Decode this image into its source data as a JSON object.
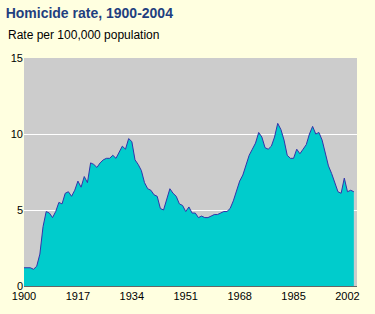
{
  "chart_data": {
    "type": "area",
    "title": "Homicide rate, 1900-2004",
    "subtitle": "Rate per 100,000 population",
    "color": "#00cccc",
    "x": [
      1900,
      1901,
      1902,
      1903,
      1904,
      1905,
      1906,
      1907,
      1908,
      1909,
      1910,
      1911,
      1912,
      1913,
      1914,
      1915,
      1916,
      1917,
      1918,
      1919,
      1920,
      1921,
      1922,
      1923,
      1924,
      1925,
      1926,
      1927,
      1928,
      1929,
      1930,
      1931,
      1932,
      1933,
      1934,
      1935,
      1936,
      1937,
      1938,
      1939,
      1940,
      1941,
      1942,
      1943,
      1944,
      1945,
      1946,
      1947,
      1948,
      1949,
      1950,
      1951,
      1952,
      1953,
      1954,
      1955,
      1956,
      1957,
      1958,
      1959,
      1960,
      1961,
      1962,
      1963,
      1964,
      1965,
      1966,
      1967,
      1968,
      1969,
      1970,
      1971,
      1972,
      1973,
      1974,
      1975,
      1976,
      1977,
      1978,
      1979,
      1980,
      1981,
      1982,
      1983,
      1984,
      1985,
      1986,
      1987,
      1988,
      1989,
      1990,
      1991,
      1992,
      1993,
      1994,
      1995,
      1996,
      1997,
      1998,
      1999,
      2000,
      2001,
      2002,
      2003,
      2004
    ],
    "values": [
      1.2,
      1.2,
      1.2,
      1.1,
      1.3,
      2.1,
      3.9,
      4.9,
      4.8,
      4.5,
      4.9,
      5.5,
      5.4,
      6.1,
      6.2,
      5.9,
      6.3,
      6.9,
      6.5,
      7.2,
      6.8,
      8.1,
      8.0,
      7.8,
      8.1,
      8.3,
      8.4,
      8.4,
      8.6,
      8.4,
      8.8,
      9.2,
      9.0,
      9.7,
      9.5,
      8.3,
      8.0,
      7.6,
      6.8,
      6.4,
      6.3,
      6.0,
      5.9,
      5.1,
      5.0,
      5.7,
      6.4,
      6.1,
      5.9,
      5.4,
      5.3,
      4.9,
      5.2,
      4.8,
      4.8,
      4.5,
      4.6,
      4.5,
      4.5,
      4.6,
      4.7,
      4.7,
      4.8,
      4.9,
      4.9,
      5.1,
      5.6,
      6.2,
      6.9,
      7.3,
      7.9,
      8.6,
      9.0,
      9.4,
      10.1,
      9.8,
      9.1,
      9.0,
      9.2,
      9.8,
      10.7,
      10.3,
      9.6,
      8.6,
      8.4,
      8.4,
      9.0,
      8.7,
      9.0,
      9.3,
      10.0,
      10.5,
      10.0,
      10.1,
      9.6,
      8.7,
      7.9,
      7.4,
      6.8,
      6.2,
      6.1,
      7.1,
      6.2,
      6.3,
      6.2
    ],
    "xlim": [
      1900,
      2005
    ],
    "xticks": [
      1900,
      1917,
      1934,
      1951,
      1968,
      1985,
      2002
    ],
    "ylim": [
      0,
      15
    ],
    "yticks": [
      0,
      5,
      10,
      15
    ],
    "grid": true
  }
}
